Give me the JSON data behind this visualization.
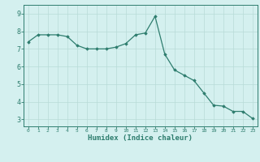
{
  "x": [
    0,
    1,
    2,
    3,
    4,
    5,
    6,
    7,
    8,
    9,
    10,
    11,
    12,
    13,
    14,
    15,
    16,
    17,
    18,
    19,
    20,
    21,
    22,
    23
  ],
  "y": [
    7.4,
    7.8,
    7.8,
    7.8,
    7.7,
    7.2,
    7.0,
    7.0,
    7.0,
    7.1,
    7.3,
    7.8,
    7.9,
    8.85,
    6.7,
    5.8,
    5.5,
    5.2,
    4.5,
    3.8,
    3.75,
    3.45,
    3.45,
    3.05
  ],
  "line_color": "#2e7d6e",
  "marker": "D",
  "marker_size": 1.8,
  "bg_color": "#d4f0ef",
  "grid_color": "#b8dbd8",
  "axis_color": "#2e7d6e",
  "xlabel": "Humidex (Indice chaleur)",
  "xlabel_fontsize": 6.5,
  "ylabel_ticks": [
    3,
    4,
    5,
    6,
    7,
    8,
    9
  ],
  "ylim": [
    2.6,
    9.5
  ],
  "xlim": [
    -0.5,
    23.5
  ],
  "tick_fontsize_x": 4.5,
  "tick_fontsize_y": 6.0
}
